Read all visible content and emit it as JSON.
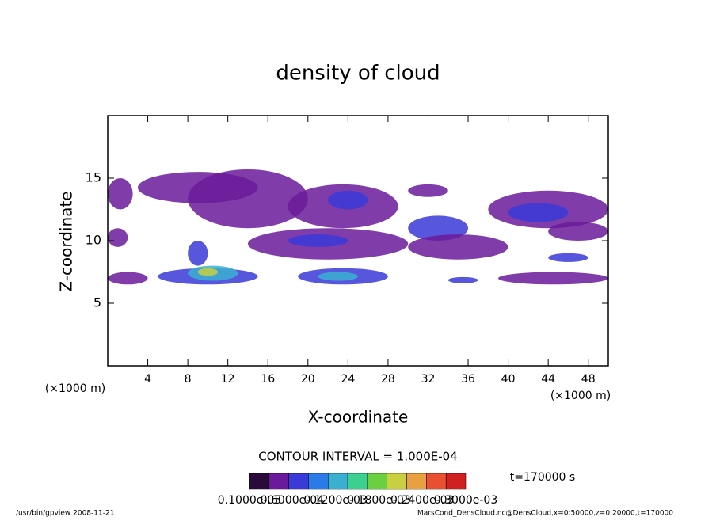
{
  "chart_data": {
    "type": "contour",
    "title": "density of cloud",
    "x_label": "X-coordinate",
    "y_label": "Z-coordinate",
    "x_unit_left": "(×1000 m)",
    "x_unit_right": "(×1000 m)",
    "xlim": [
      0,
      50
    ],
    "ylim": [
      0,
      20
    ],
    "xticks": [
      4,
      8,
      12,
      16,
      20,
      24,
      28,
      32,
      36,
      40,
      44,
      48
    ],
    "yticks": [
      5,
      10,
      15
    ],
    "contour_interval": "CONTOUR INTERVAL = 1.000E-04",
    "time_label": "t=170000 s",
    "footer_left": "/usr/bin/gpview  2008-11-21",
    "footer_right": "MarsCond_DensCloud.nc@DensCloud,x=0:50000,z=0:20000,t=170000",
    "colorbar": {
      "levels": [
        1e-06,
        3e-05,
        6e-05,
        9e-05,
        0.00012,
        0.00015,
        0.00018,
        0.00021,
        0.00024,
        0.00027,
        0.0003
      ],
      "colors": [
        "#2a0a3a",
        "#6a1a9a",
        "#3a3ad8",
        "#2a7ae8",
        "#3ab0d0",
        "#3ad090",
        "#6ad040",
        "#c8d040",
        "#e8a040",
        "#e85030",
        "#d02020"
      ],
      "tick_labels": [
        {
          "value": 1e-06,
          "label": "0.1000e-05"
        },
        {
          "value": 6e-05,
          "label": "0.6000e-04"
        },
        {
          "value": 0.00012,
          "label": "0.1200e-03"
        },
        {
          "value": 0.00018,
          "label": "0.1800e-03"
        },
        {
          "value": 0.00024,
          "label": "0.2400e-03"
        },
        {
          "value": 0.0003,
          "label": "0.3000e-03"
        }
      ]
    },
    "regions": [
      {
        "x": [
          0,
          2.5
        ],
        "z": [
          12.5,
          15
        ],
        "value": 3e-05
      },
      {
        "x": [
          3,
          15
        ],
        "z": [
          13,
          15.5
        ],
        "value": 3e-05
      },
      {
        "x": [
          8,
          20
        ],
        "z": [
          11,
          15.7
        ],
        "value": 4e-05
      },
      {
        "x": [
          18,
          29
        ],
        "z": [
          11,
          14.5
        ],
        "value": 4e-05
      },
      {
        "x": [
          22,
          26
        ],
        "z": [
          12.5,
          14
        ],
        "value": 6e-05
      },
      {
        "x": [
          30,
          34
        ],
        "z": [
          13.5,
          14.5
        ],
        "value": 3e-05
      },
      {
        "x": [
          38,
          50
        ],
        "z": [
          11,
          14
        ],
        "value": 4e-05
      },
      {
        "x": [
          40,
          46
        ],
        "z": [
          11.5,
          13
        ],
        "value": 7e-05
      },
      {
        "x": [
          0,
          2
        ],
        "z": [
          9.5,
          11
        ],
        "value": 3e-05
      },
      {
        "x": [
          14,
          30
        ],
        "z": [
          8.5,
          11
        ],
        "value": 4e-05
      },
      {
        "x": [
          18,
          24
        ],
        "z": [
          9.5,
          10.5
        ],
        "value": 7e-05
      },
      {
        "x": [
          30,
          36
        ],
        "z": [
          10,
          12
        ],
        "value": 8e-05
      },
      {
        "x": [
          30,
          40
        ],
        "z": [
          8.5,
          10.5
        ],
        "value": 4e-05
      },
      {
        "x": [
          44,
          50
        ],
        "z": [
          10,
          11.5
        ],
        "value": 4e-05
      },
      {
        "x": [
          8,
          10
        ],
        "z": [
          8,
          10
        ],
        "value": 6e-05
      },
      {
        "x": [
          0,
          4
        ],
        "z": [
          6.5,
          7.5
        ],
        "value": 4e-05
      },
      {
        "x": [
          5,
          15
        ],
        "z": [
          6.5,
          7.8
        ],
        "value": 6e-05
      },
      {
        "x": [
          8,
          13
        ],
        "z": [
          6.8,
          8
        ],
        "value": 0.00012
      },
      {
        "x": [
          9,
          11
        ],
        "z": [
          7.2,
          7.8
        ],
        "value": 0.00022
      },
      {
        "x": [
          19,
          28
        ],
        "z": [
          6.5,
          7.8
        ],
        "value": 6e-05
      },
      {
        "x": [
          21,
          25
        ],
        "z": [
          6.8,
          7.5
        ],
        "value": 0.00012
      },
      {
        "x": [
          34,
          37
        ],
        "z": [
          6.6,
          7.1
        ],
        "value": 8e-05
      },
      {
        "x": [
          39,
          50
        ],
        "z": [
          6.5,
          7.5
        ],
        "value": 4e-05
      },
      {
        "x": [
          44,
          48
        ],
        "z": [
          8.3,
          9
        ],
        "value": 6e-05
      }
    ]
  }
}
